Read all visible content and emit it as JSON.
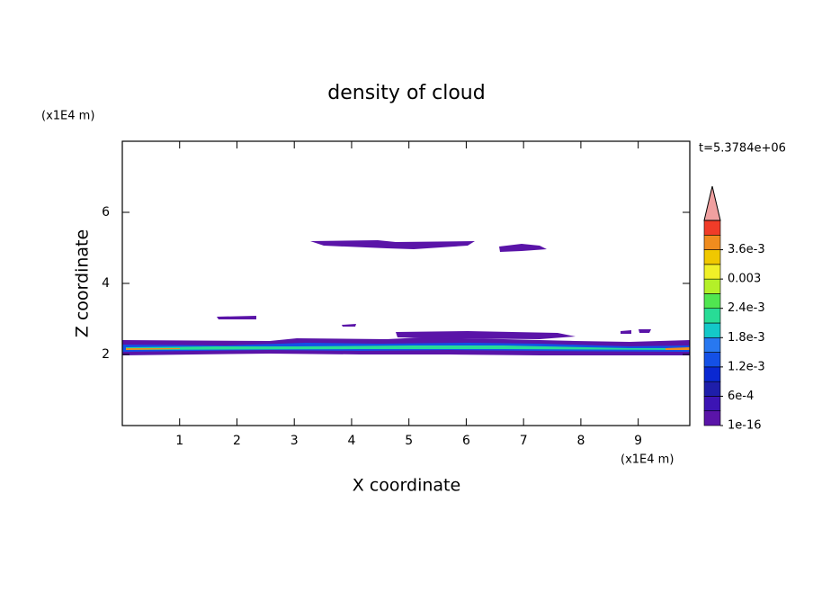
{
  "chart_data": {
    "type": "contour",
    "title": "density of cloud",
    "subtitle": "t=5.3784e+06",
    "x_label": "X coordinate",
    "y_label": "Z coordinate",
    "x_unit": "(x1E4 m)",
    "y_unit": "(x1E4 m)",
    "xlim": [
      0,
      9.9
    ],
    "xticks": [
      1,
      2,
      3,
      4,
      5,
      6,
      7,
      8,
      9
    ],
    "ylim": [
      0,
      8
    ],
    "yticks": [
      2,
      4,
      6
    ],
    "colorbar": {
      "lim": [
        0,
        0.0042
      ],
      "ticks": [
        {
          "value": 1e-16,
          "label": "1e-16"
        },
        {
          "value": 0.0006,
          "label": "6e-4"
        },
        {
          "value": 0.0012,
          "label": "1.2e-3"
        },
        {
          "value": 0.0018,
          "label": "1.8e-3"
        },
        {
          "value": 0.0024,
          "label": "2.4e-3"
        },
        0.003,
        {
          "value": 0.0036,
          "label": "3.6e-3"
        }
      ],
      "colors": [
        "#5a14a8",
        "#3c14b4",
        "#1e1eaa",
        "#0a28d2",
        "#1450e6",
        "#2878f0",
        "#14c8c8",
        "#28dc96",
        "#50e650",
        "#b4f028",
        "#f0f028",
        "#f0c800",
        "#f08c1e",
        "#f03c28"
      ],
      "extend_color": "#f0a0a0"
    }
  }
}
